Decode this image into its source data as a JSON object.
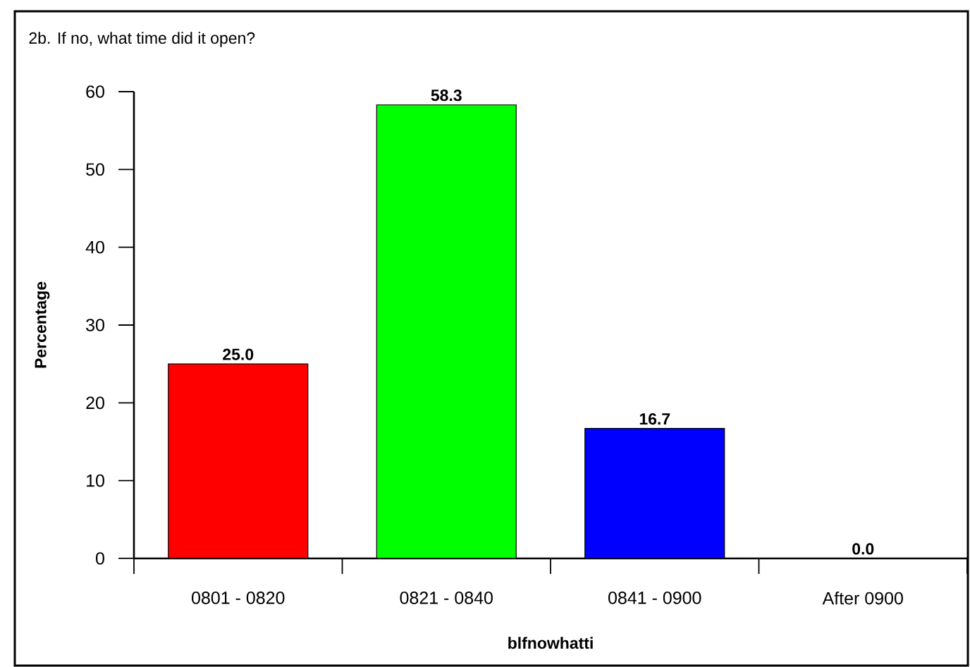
{
  "chart_data": {
    "type": "bar",
    "title": "2b. If no, what time did it open?",
    "xlabel": "blfnowhatti",
    "ylabel": "Percentage",
    "categories": [
      "0801 - 0820",
      "0821 - 0840",
      "0841 - 0900",
      "After 0900"
    ],
    "values": [
      25.0,
      58.3,
      16.7,
      0.0
    ],
    "value_labels": [
      "25.0",
      "58.3",
      "16.7",
      "0.0"
    ],
    "colors": [
      "#ff0000",
      "#00ff00",
      "#0000ff",
      "#ffff00"
    ],
    "ylim": [
      0,
      60
    ],
    "yticks": [
      0,
      10,
      20,
      30,
      40,
      50,
      60
    ]
  }
}
